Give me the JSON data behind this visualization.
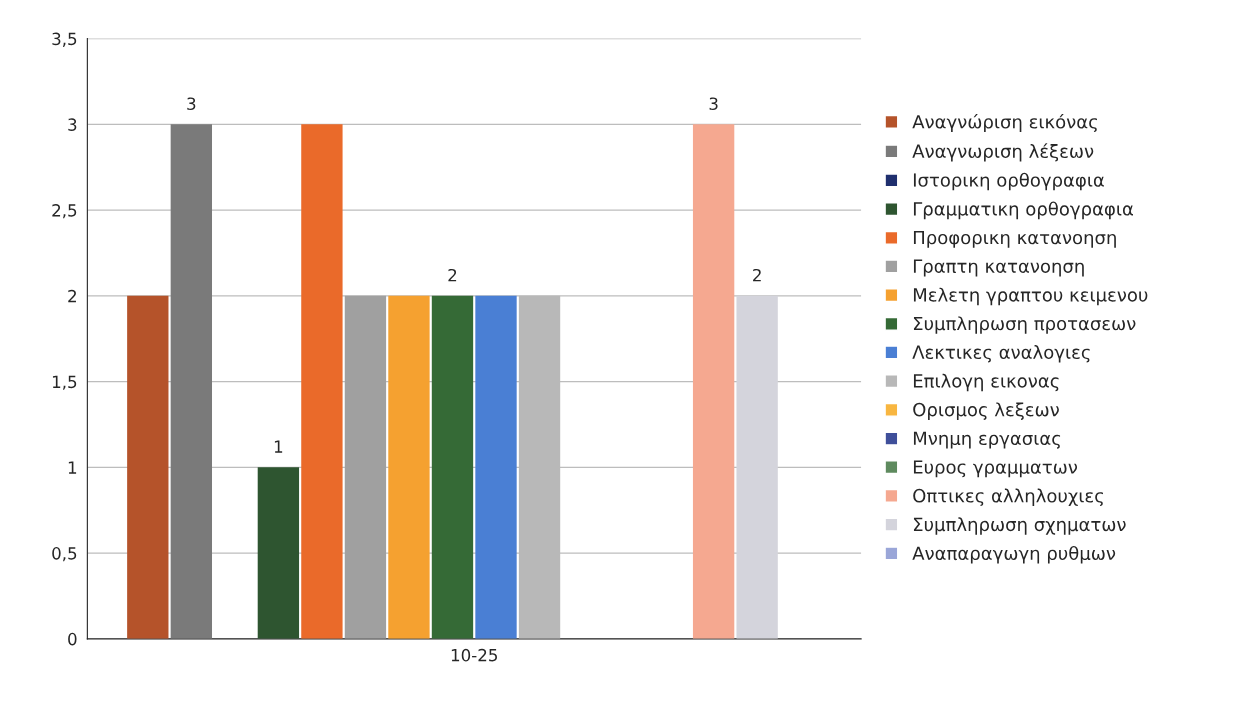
{
  "chart_data": {
    "type": "bar",
    "categories": [
      "10-25"
    ],
    "series": [
      {
        "name": "Αναγνώριση εικόνας",
        "color": "#b5532a",
        "values": [
          2
        ]
      },
      {
        "name": "Αναγνωριση λέξεων",
        "color": "#7a7a7a",
        "values": [
          3
        ],
        "value_labels": [
          "3"
        ]
      },
      {
        "name": "Ιστορικη ορθογραφια",
        "color": "#1f2f6e",
        "values": [
          null
        ]
      },
      {
        "name": "Γραμματικη ορθογραφια",
        "color": "#2e5530",
        "values": [
          1
        ],
        "value_labels": [
          "1"
        ]
      },
      {
        "name": "Προφορικη κατανοηση",
        "color": "#ea6a2a",
        "values": [
          3
        ]
      },
      {
        "name": "Γραπτη κατανοηση",
        "color": "#a0a0a0",
        "values": [
          2
        ]
      },
      {
        "name": "Μελετη γραπτου κειμενου",
        "color": "#f5a130",
        "values": [
          2
        ]
      },
      {
        "name": "Συμπληρωση προτασεων",
        "color": "#356a36",
        "values": [
          2
        ],
        "value_labels": [
          "2"
        ]
      },
      {
        "name": "Λεκτικες αναλογιες",
        "color": "#4a7fd4",
        "values": [
          2
        ]
      },
      {
        "name": "Επιλογη εικονας",
        "color": "#b8b8b8",
        "values": [
          2
        ]
      },
      {
        "name": "Ορισμος λεξεων",
        "color": "#f8b640",
        "values": [
          null
        ]
      },
      {
        "name": "Μνημη εργασιας",
        "color": "#3f4f9a",
        "values": [
          null
        ]
      },
      {
        "name": "Ευρος γραμματων",
        "color": "#5e8a5e",
        "values": [
          null
        ]
      },
      {
        "name": "Οπτικες αλληλουχιες",
        "color": "#f5a890",
        "values": [
          3
        ],
        "value_labels": [
          "3"
        ]
      },
      {
        "name": "Συμπληρωση σχηματων",
        "color": "#d4d4dc",
        "values": [
          2
        ],
        "value_labels": [
          "2"
        ]
      },
      {
        "name": "Αναπαραγωγη ρυθμων",
        "color": "#9aa6d8",
        "values": [
          null
        ]
      }
    ],
    "ylim": [
      0,
      3.5
    ],
    "yticks": [
      0,
      {
        "value": 0.5,
        "label": "0,5"
      },
      1,
      {
        "value": 1.5,
        "label": "1,5"
      },
      2,
      {
        "value": 2.5,
        "label": "2,5"
      },
      3,
      {
        "value": 3.5,
        "label": "3,5"
      }
    ],
    "grid": "y",
    "legend": "right"
  }
}
